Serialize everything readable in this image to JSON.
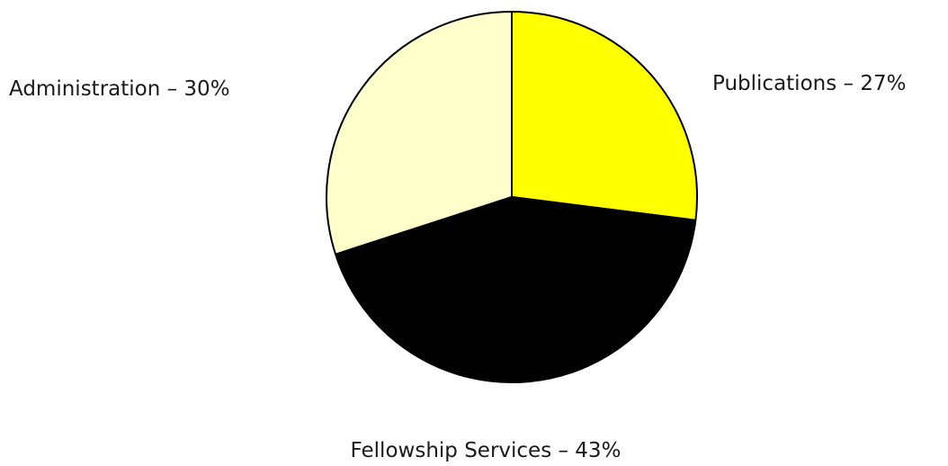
{
  "chart_data": {
    "type": "pie",
    "title": "",
    "slices": [
      {
        "name": "Publications",
        "value": 27,
        "label": "Publications – 27%",
        "color": "#ffff00"
      },
      {
        "name": "Fellowship Services",
        "value": 43,
        "label": "Fellowship Services – 43%",
        "color": "#000000"
      },
      {
        "name": "Administration",
        "value": 30,
        "label": "Administration – 30%",
        "color": "#ffffcc"
      }
    ],
    "start": "12 o'clock",
    "direction": "clockwise",
    "slice_outline_color": "#000000"
  }
}
